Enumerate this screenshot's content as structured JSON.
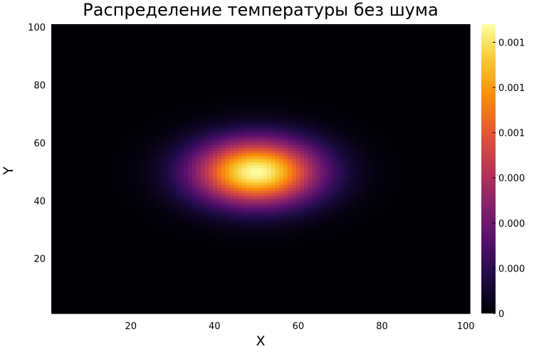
{
  "chart_data": {
    "type": "heatmap",
    "title": "Распределение температуры без шума",
    "xlabel": "X",
    "ylabel": "Y",
    "xlim": [
      1,
      101
    ],
    "ylim": [
      1,
      101
    ],
    "x_ticks": [
      20,
      40,
      60,
      80,
      100
    ],
    "y_ticks": [
      20,
      40,
      60,
      80,
      100
    ],
    "colormap": "inferno",
    "grid": false,
    "colorbar": {
      "min": 0,
      "max": 0.0016,
      "tick_values": [
        0,
        0.00025,
        0.0005,
        0.00075,
        0.001,
        0.00125,
        0.0015
      ],
      "tick_labels": [
        "0",
        "0.000",
        "0.000",
        "0.000",
        "0.001",
        "0.001",
        "0.001"
      ]
    },
    "field": {
      "description_type": "gaussian",
      "center_x": 50,
      "center_y": 50,
      "sigma_x": 10.5,
      "sigma_y": 8,
      "peak": 0.00159
    }
  }
}
